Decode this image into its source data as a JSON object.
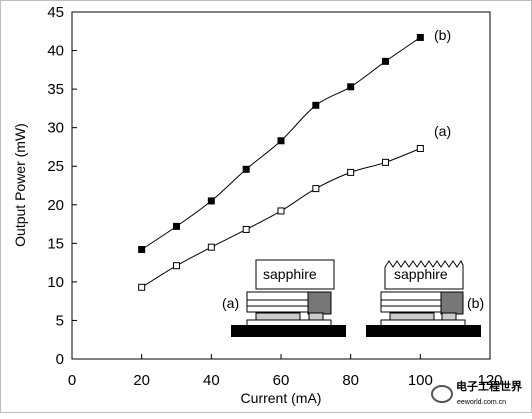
{
  "chart_data": {
    "type": "line",
    "title": "",
    "xlabel": "Current (mA)",
    "ylabel": "Output Power (mW)",
    "xlim": [
      0,
      120
    ],
    "ylim": [
      0,
      45
    ],
    "xticks": [
      "0",
      "20",
      "40",
      "60",
      "80",
      "100",
      "120"
    ],
    "yticks": [
      "0",
      "5",
      "10",
      "15",
      "20",
      "25",
      "30",
      "35",
      "40",
      "45"
    ],
    "grid": false,
    "x": [
      20,
      30,
      40,
      50,
      60,
      70,
      80,
      90,
      100
    ],
    "series": [
      {
        "name": "(b)",
        "marker": "filled-square",
        "color": "#000000",
        "values": [
          14.2,
          17.2,
          20.5,
          24.6,
          28.3,
          32.9,
          35.3,
          38.6,
          41.7
        ]
      },
      {
        "name": "(a)",
        "marker": "open-square",
        "color": "#000000",
        "values": [
          9.3,
          12.1,
          14.5,
          16.8,
          19.2,
          22.1,
          24.2,
          25.5,
          27.3
        ]
      }
    ],
    "inset": {
      "left_label": "(a)",
      "right_label": "(b)",
      "left_substrate": "sapphire",
      "right_substrate": "sapphire"
    }
  },
  "watermark": {
    "text": "电子工程世界",
    "site": "eeworld.com.cn",
    "sub": "www.eeworld.com.cn"
  }
}
